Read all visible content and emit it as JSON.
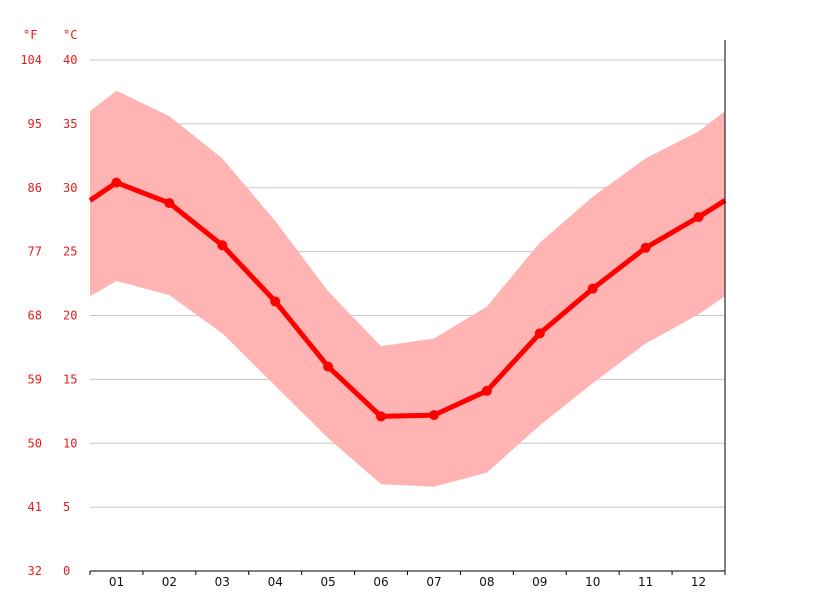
{
  "chart_data": {
    "type": "area",
    "title": "",
    "xlabel": "",
    "ylabel": "",
    "categories": [
      "01",
      "02",
      "03",
      "04",
      "05",
      "06",
      "07",
      "08",
      "09",
      "10",
      "11",
      "12"
    ],
    "y_unit_celsius": "°C",
    "y_unit_fahrenheit": "°F",
    "ylim": [
      0,
      40
    ],
    "yticks_celsius": [
      "0",
      "5",
      "10",
      "15",
      "20",
      "25",
      "30",
      "35",
      "40"
    ],
    "yticks_fahrenheit": [
      "32",
      "41",
      "50",
      "59",
      "68",
      "77",
      "86",
      "95",
      "104"
    ],
    "grid": true,
    "series": [
      {
        "name": "",
        "type": "line",
        "values": [
          30.4,
          28.8,
          25.5,
          21.1,
          16.0,
          12.1,
          12.2,
          14.1,
          18.6,
          22.1,
          25.3,
          27.7
        ]
      },
      {
        "name": "",
        "type": "range",
        "low": [
          22.7,
          21.6,
          18.6,
          14.5,
          10.4,
          6.8,
          6.6,
          7.7,
          11.4,
          14.7,
          17.8,
          20.1
        ],
        "high": [
          37.6,
          35.6,
          32.3,
          27.4,
          21.9,
          17.6,
          18.2,
          20.7,
          25.7,
          29.3,
          32.3,
          34.4
        ]
      }
    ],
    "edge_values": {
      "line_left": 29.0,
      "line_right": 29.0,
      "low_left": 21.5,
      "low_right": 21.5,
      "high_left": 36.0,
      "high_right": 36.0
    },
    "colors": {
      "line": "#ff0000",
      "band": "#ffb3b3",
      "grid": "#c8c8c8",
      "axis_label": "#e0201e"
    }
  }
}
